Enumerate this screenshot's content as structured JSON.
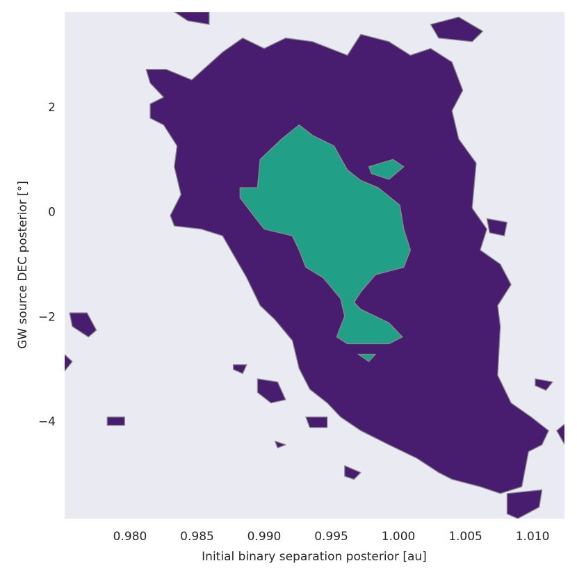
{
  "chart_data": {
    "type": "contour",
    "xlabel": "Initial binary separation posterior [au]",
    "ylabel": "GW source DEC posterior [°]",
    "xlim": [
      0.97513,
      1.01238
    ],
    "ylim": [
      -5.86,
      3.82
    ],
    "xticks": [
      {
        "value": 0.98,
        "label": "0.980"
      },
      {
        "value": 0.985,
        "label": "0.985"
      },
      {
        "value": 0.99,
        "label": "0.990"
      },
      {
        "value": 0.995,
        "label": "0.995"
      },
      {
        "value": 1.0,
        "label": "1.000"
      },
      {
        "value": 1.005,
        "label": "1.005"
      },
      {
        "value": 1.01,
        "label": "1.010"
      }
    ],
    "yticks": [
      {
        "value": -4,
        "label": "−4"
      },
      {
        "value": -2,
        "label": "−2"
      },
      0,
      2
    ],
    "background": "#eaeaf2",
    "edgecolor": "#8a8a8a",
    "levels": [
      {
        "color": "#481c6e",
        "regions": [
          [
            [
              0.9812,
              2.72
            ],
            [
              0.9827,
              2.72
            ],
            [
              0.9846,
              2.52
            ],
            [
              0.9869,
              3.05
            ],
            [
              0.9884,
              3.32
            ],
            [
              0.99,
              3.12
            ],
            [
              0.9916,
              3.32
            ],
            [
              0.9936,
              3.25
            ],
            [
              0.9962,
              2.99
            ],
            [
              0.9972,
              3.39
            ],
            [
              0.9993,
              3.25
            ],
            [
              1.0009,
              2.99
            ],
            [
              1.0024,
              3.12
            ],
            [
              1.004,
              2.86
            ],
            [
              1.0048,
              2.32
            ],
            [
              1.004,
              1.93
            ],
            [
              1.0045,
              1.39
            ],
            [
              1.0058,
              0.93
            ],
            [
              1.0055,
              0.07
            ],
            [
              1.0066,
              -0.33
            ],
            [
              1.0061,
              -0.73
            ],
            [
              1.0076,
              -1.0
            ],
            [
              1.0084,
              -1.39
            ],
            [
              1.0074,
              -1.79
            ],
            [
              1.0076,
              -2.19
            ],
            [
              1.0074,
              -3.12
            ],
            [
              1.0084,
              -3.65
            ],
            [
              1.0099,
              -3.92
            ],
            [
              1.0112,
              -4.18
            ],
            [
              1.0107,
              -4.45
            ],
            [
              1.0097,
              -4.58
            ],
            [
              1.0092,
              -5.25
            ],
            [
              1.0076,
              -5.38
            ],
            [
              1.0061,
              -5.25
            ],
            [
              1.004,
              -5.11
            ],
            [
              1.003,
              -4.98
            ],
            [
              1.0014,
              -4.71
            ],
            [
              0.9993,
              -4.45
            ],
            [
              0.9972,
              -4.18
            ],
            [
              0.9957,
              -3.92
            ],
            [
              0.9947,
              -3.65
            ],
            [
              0.9934,
              -3.39
            ],
            [
              0.9926,
              -2.99
            ],
            [
              0.9921,
              -2.46
            ],
            [
              0.9908,
              -2.06
            ],
            [
              0.9897,
              -1.79
            ],
            [
              0.9887,
              -1.26
            ],
            [
              0.9869,
              -0.46
            ],
            [
              0.9853,
              -0.33
            ],
            [
              0.9833,
              -0.27
            ],
            [
              0.983,
              -0.07
            ],
            [
              0.9838,
              0.33
            ],
            [
              0.9833,
              0.86
            ],
            [
              0.9835,
              1.26
            ],
            [
              0.9825,
              1.66
            ],
            [
              0.9815,
              1.79
            ],
            [
              0.9815,
              2.06
            ],
            [
              0.9825,
              2.19
            ],
            [
              0.9815,
              2.46
            ]
          ],
          [
            [
              1.0024,
              3.58
            ],
            [
              1.0045,
              3.72
            ],
            [
              1.0063,
              3.45
            ],
            [
              1.0055,
              3.25
            ],
            [
              1.003,
              3.32
            ]
          ],
          [
            [
              0.9833,
              3.82
            ],
            [
              0.9859,
              3.82
            ],
            [
              0.9859,
              3.58
            ],
            [
              0.9843,
              3.65
            ]
          ],
          [
            [
              0.9755,
              -1.93
            ],
            [
              0.9768,
              -1.93
            ],
            [
              0.9775,
              -2.26
            ],
            [
              0.9769,
              -2.39
            ],
            [
              0.9757,
              -2.19
            ]
          ],
          [
            [
              0.9751,
              -2.72
            ],
            [
              0.9757,
              -2.86
            ],
            [
              0.9751,
              -3.05
            ]
          ],
          [
            [
              0.9783,
              -3.92
            ],
            [
              0.9796,
              -3.92
            ],
            [
              0.9796,
              -4.08
            ],
            [
              0.9783,
              -4.08
            ]
          ],
          [
            [
              0.9895,
              -3.19
            ],
            [
              0.991,
              -3.25
            ],
            [
              0.9916,
              -3.59
            ],
            [
              0.9905,
              -3.65
            ],
            [
              0.9895,
              -3.45
            ]
          ],
          [
            [
              1.0081,
              -5.38
            ],
            [
              1.0107,
              -5.31
            ],
            [
              1.0105,
              -5.64
            ],
            [
              1.0089,
              -5.86
            ],
            [
              1.0081,
              -5.77
            ]
          ],
          [
            [
              1.0118,
              -4.18
            ],
            [
              1.0124,
              -4.05
            ],
            [
              1.0124,
              -4.45
            ]
          ],
          [
            [
              0.996,
              -4.85
            ],
            [
              0.9972,
              -4.98
            ],
            [
              0.9967,
              -5.11
            ],
            [
              0.996,
              -5.05
            ]
          ],
          [
            [
              1.0066,
              -0.13
            ],
            [
              1.0081,
              -0.2
            ],
            [
              1.0079,
              -0.46
            ],
            [
              1.0068,
              -0.4
            ]
          ],
          [
            [
              1.0102,
              -3.19
            ],
            [
              1.0115,
              -3.25
            ],
            [
              1.011,
              -3.41
            ],
            [
              1.0102,
              -3.32
            ]
          ],
          [
            [
              0.9877,
              -2.92
            ],
            [
              0.9887,
              -2.92
            ],
            [
              0.9884,
              -3.09
            ],
            [
              0.9877,
              -3.01
            ]
          ],
          [
            [
              0.9908,
              -4.38
            ],
            [
              0.9916,
              -4.45
            ],
            [
              0.991,
              -4.51
            ]
          ],
          [
            [
              0.9931,
              -3.92
            ],
            [
              0.9947,
              -3.92
            ],
            [
              0.9947,
              -4.12
            ],
            [
              0.9934,
              -4.12
            ]
          ]
        ]
      },
      {
        "color": "#21a087",
        "regions": [
          [
            [
              0.9913,
              1.39
            ],
            [
              0.9926,
              1.66
            ],
            [
              0.9936,
              1.46
            ],
            [
              0.9952,
              1.26
            ],
            [
              0.9962,
              0.8
            ],
            [
              0.9972,
              0.6
            ],
            [
              0.9985,
              0.46
            ],
            [
              1.0001,
              0.13
            ],
            [
              1.0004,
              -0.33
            ],
            [
              1.0009,
              -0.73
            ],
            [
              1.0004,
              -1.06
            ],
            [
              0.9983,
              -1.2
            ],
            [
              0.9972,
              -1.53
            ],
            [
              0.9967,
              -1.73
            ],
            [
              0.9972,
              -1.86
            ],
            [
              0.9993,
              -2.12
            ],
            [
              1.0003,
              -2.39
            ],
            [
              0.9993,
              -2.52
            ],
            [
              0.9962,
              -2.52
            ],
            [
              0.9954,
              -2.39
            ],
            [
              0.996,
              -1.99
            ],
            [
              0.9957,
              -1.66
            ],
            [
              0.9944,
              -1.26
            ],
            [
              0.9931,
              -1.06
            ],
            [
              0.9926,
              -0.73
            ],
            [
              0.9921,
              -0.46
            ],
            [
              0.99,
              -0.33
            ],
            [
              0.9892,
              -0.07
            ],
            [
              0.9882,
              0.27
            ],
            [
              0.9882,
              0.46
            ],
            [
              0.9895,
              0.46
            ],
            [
              0.9897,
              1.0
            ]
          ],
          [
            [
              0.9978,
              0.86
            ],
            [
              0.9996,
              1.0
            ],
            [
              1.0004,
              0.86
            ],
            [
              0.9993,
              0.62
            ],
            [
              0.998,
              0.73
            ]
          ],
          [
            [
              0.997,
              -2.72
            ],
            [
              0.9983,
              -2.72
            ],
            [
              0.9978,
              -2.86
            ]
          ]
        ]
      }
    ]
  }
}
